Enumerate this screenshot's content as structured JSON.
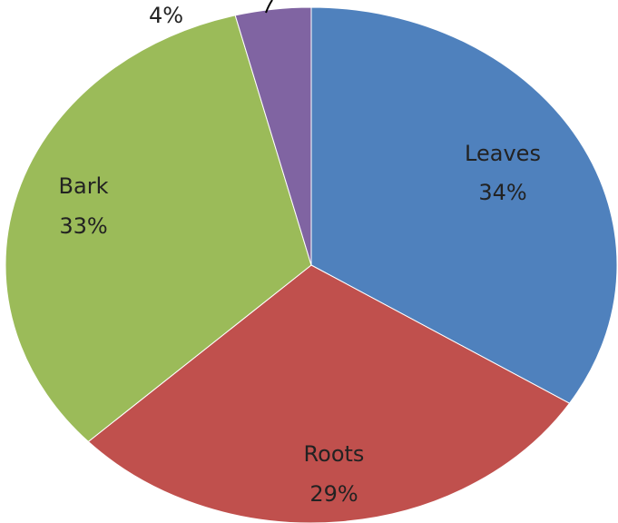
{
  "chart_data": {
    "type": "pie",
    "title": "",
    "start_angle_deg": 0,
    "direction": "clockwise",
    "slices": [
      {
        "label": "Leaves",
        "percent_label": "34%",
        "value": 34,
        "color": "#4F81BD"
      },
      {
        "label": "Roots",
        "percent_label": "29%",
        "value": 29,
        "color": "#C0504D"
      },
      {
        "label": "Bark",
        "percent_label": "33%",
        "value": 33,
        "color": "#9BBB59"
      },
      {
        "label": "",
        "percent_label": "4%",
        "value": 4,
        "color": "#8064A2"
      }
    ]
  }
}
